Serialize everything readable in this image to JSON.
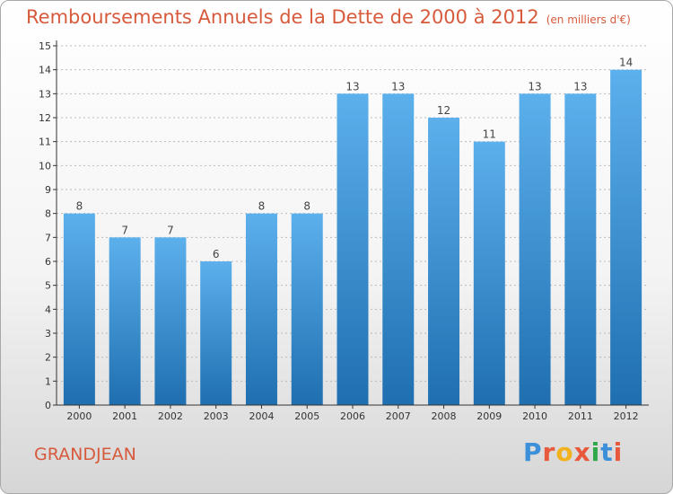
{
  "title": "Remboursements Annuels de la Dette de 2000 à 2012",
  "subtitle": "(en milliers d'€)",
  "place": "GRANDJEAN",
  "brand": {
    "letters": [
      "P",
      "r",
      "o",
      "x",
      "i",
      "t",
      "i"
    ],
    "colors": [
      "#3c8fd9",
      "#e8583c",
      "#f2b11e",
      "#e8583c",
      "#2fa84a",
      "#3c8fd9",
      "#e8583c"
    ]
  },
  "colors": {
    "bar_top": "#5cb0ec",
    "bar_bottom": "#1f6fb0",
    "title": "#d75a3c",
    "axis": "#333333",
    "grid": "#bbbbbb"
  },
  "chart_data": {
    "type": "bar",
    "title": "Remboursements Annuels de la Dette de 2000 à 2012",
    "xlabel": "",
    "ylabel": "",
    "categories": [
      "2000",
      "2001",
      "2002",
      "2003",
      "2004",
      "2005",
      "2006",
      "2007",
      "2008",
      "2009",
      "2010",
      "2011",
      "2012"
    ],
    "values": [
      8,
      7,
      7,
      6,
      8,
      8,
      13,
      13,
      12,
      11,
      13,
      13,
      14
    ],
    "ylim": [
      0,
      15
    ],
    "yticks": [
      "0",
      "1",
      "2",
      "3",
      "4",
      "5",
      "6",
      "7",
      "8",
      "9",
      "10",
      "11",
      "12",
      "13",
      "14",
      "15"
    ],
    "grid": true
  }
}
